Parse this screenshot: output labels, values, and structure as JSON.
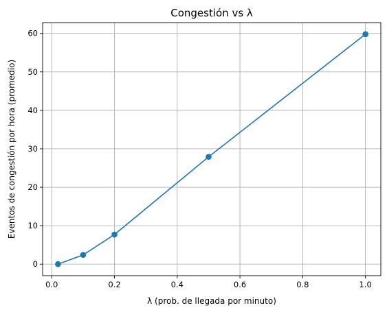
{
  "chart_data": {
    "type": "line",
    "title": "Congestión vs λ",
    "xlabel": "λ (prob. de llegada por minuto)",
    "ylabel": "Eventos de congestión por hora (promedio)",
    "xlim": [
      -0.029,
      1.049
    ],
    "ylim": [
      -2.99,
      62.8
    ],
    "xticks": [
      0.0,
      0.2,
      0.4,
      0.6,
      0.8,
      1.0
    ],
    "xtick_labels": [
      "0.0",
      "0.2",
      "0.4",
      "0.6",
      "0.8",
      "1.0"
    ],
    "yticks": [
      0,
      10,
      20,
      30,
      40,
      50,
      60
    ],
    "ytick_labels": [
      "0",
      "10",
      "20",
      "30",
      "40",
      "50",
      "60"
    ],
    "grid": true,
    "line_color": "#1f77b4",
    "series": [
      {
        "x": [
          0.02,
          0.1,
          0.2,
          0.5,
          1.0
        ],
        "y": [
          0.0,
          2.4,
          7.7,
          27.9,
          59.8
        ]
      }
    ]
  }
}
